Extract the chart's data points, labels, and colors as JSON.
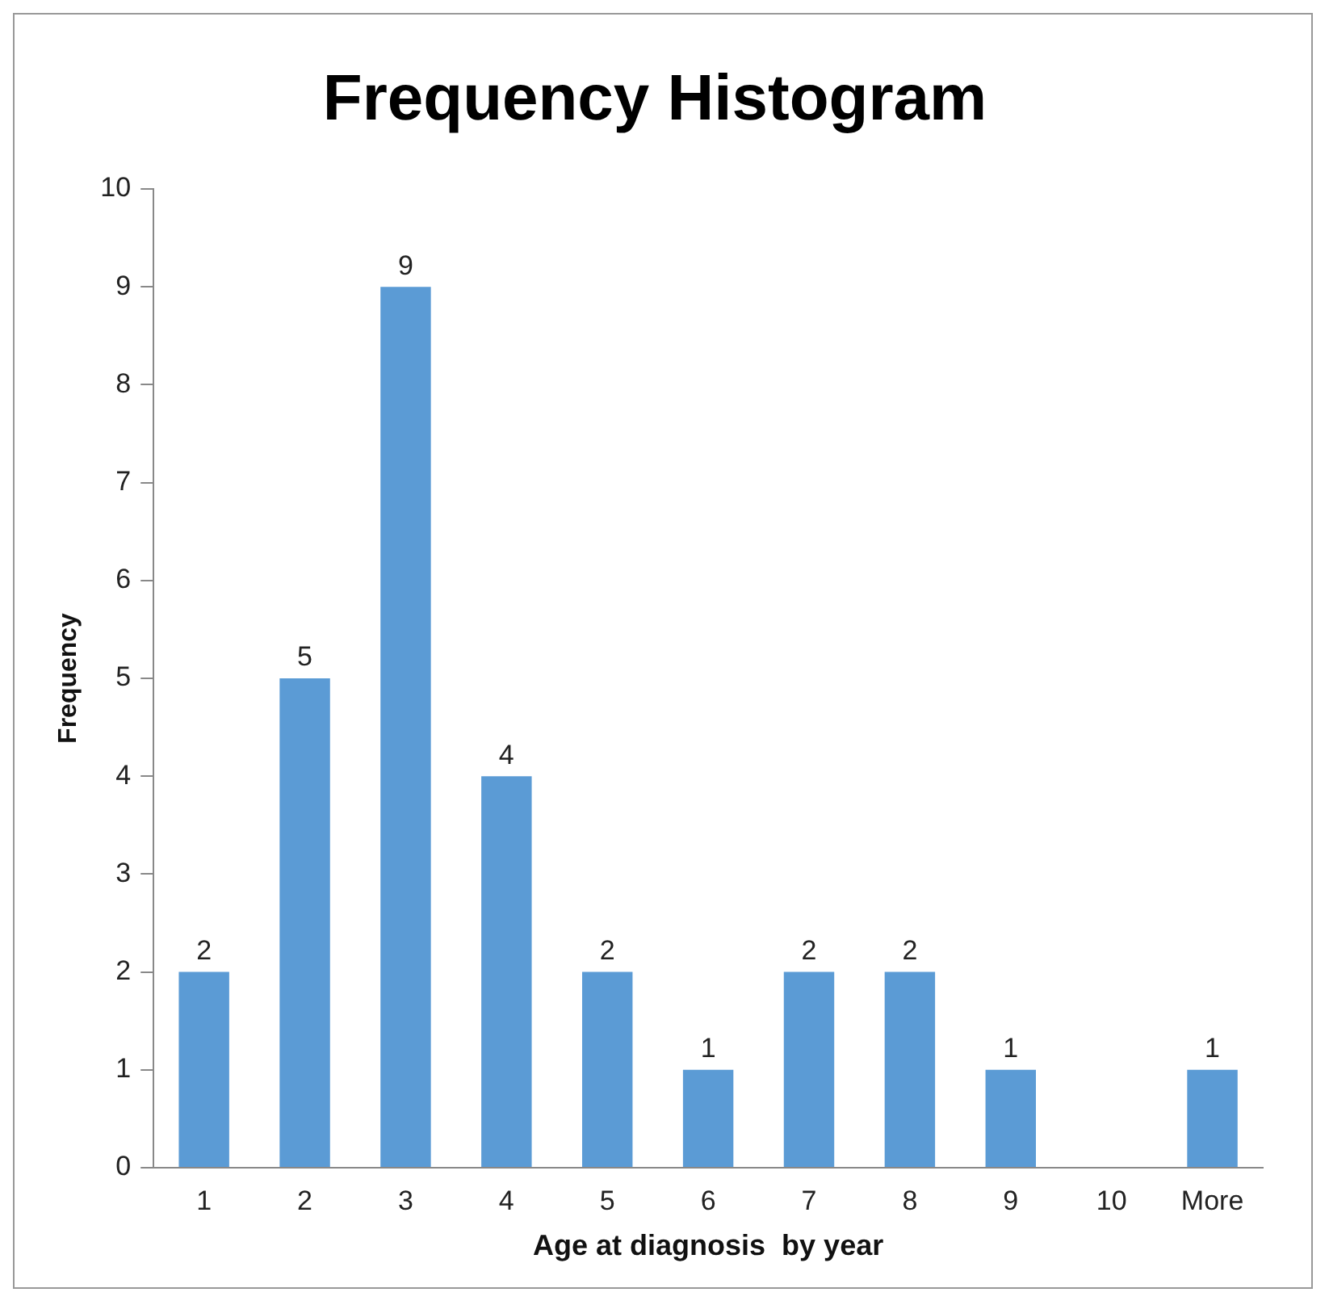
{
  "chart_data": {
    "type": "bar",
    "title": "Frequency Histogram",
    "xlabel": "Age at diagnosis  by year",
    "ylabel": "Frequency",
    "categories": [
      "1",
      "2",
      "3",
      "4",
      "5",
      "6",
      "7",
      "8",
      "9",
      "10",
      "More"
    ],
    "values": [
      2,
      5,
      9,
      4,
      2,
      1,
      2,
      2,
      1,
      0,
      1
    ],
    "value_labels": [
      "2",
      "5",
      "9",
      "4",
      "2",
      "1",
      "2",
      "2",
      "1",
      null,
      "1"
    ],
    "color": "#5b9bd5",
    "ylim": [
      0,
      10
    ],
    "yticks": [
      0,
      1,
      2,
      3,
      4,
      5,
      6,
      7,
      8,
      9,
      10
    ],
    "grid": false,
    "legend": false
  }
}
